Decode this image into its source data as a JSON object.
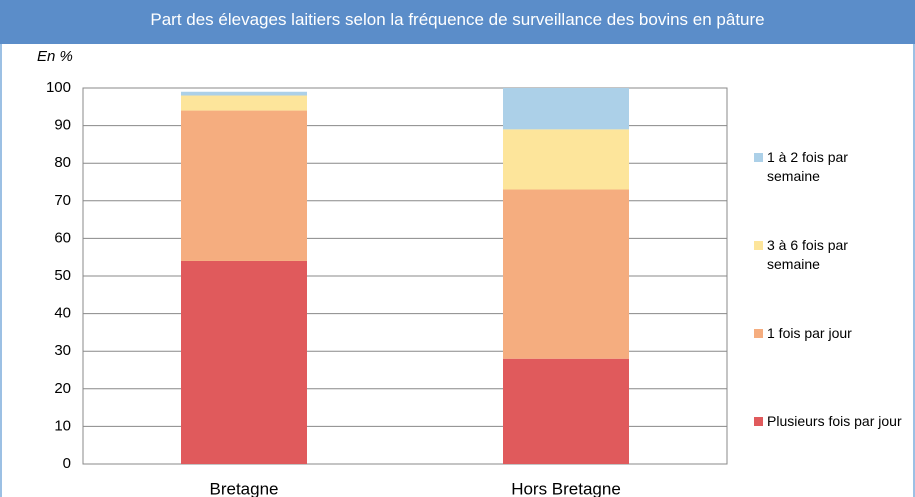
{
  "chart_data": {
    "type": "stacked_bar",
    "subtitle": "Part des élevages laitiers selon la fréquence de surveillance des bovins en pâture",
    "y_label": "En %",
    "categories": [
      "Bretagne",
      "Hors Bretagne"
    ],
    "series": [
      {
        "name": "Plusieurs fois par jour",
        "color": "#e05a5c",
        "values": [
          54,
          28
        ]
      },
      {
        "name": "1 fois par jour",
        "color": "#f5ad7f",
        "values": [
          40,
          45
        ]
      },
      {
        "name": "3 à 6 fois par semaine",
        "color": "#fde59b",
        "values": [
          4,
          16
        ]
      },
      {
        "name": "1 à 2 fois par semaine",
        "color": "#acd0e8",
        "values": [
          1,
          11
        ]
      }
    ],
    "ylim": [
      0,
      100
    ],
    "yticks": [
      0,
      10,
      20,
      30,
      40,
      50,
      60,
      70,
      80,
      90,
      100
    ],
    "grid": true
  }
}
